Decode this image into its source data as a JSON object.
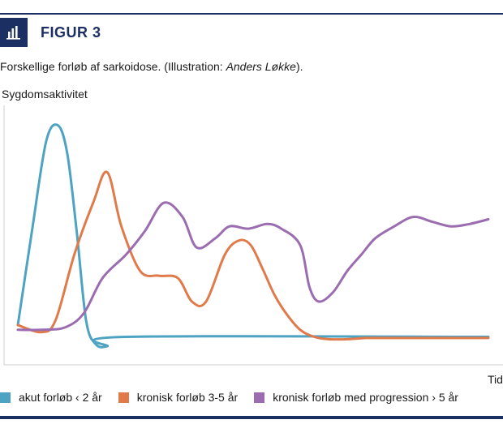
{
  "figure": {
    "label": "FIGUR 3",
    "icon": "bar-chart-icon",
    "caption_prefix": "Forskellige forløb af sarkoidose. (Illustration: ",
    "caption_author": "Anders Løkke",
    "caption_suffix": ")."
  },
  "colors": {
    "brand": "#1c2f63",
    "acute": "#4ea3c2",
    "chronic": "#e07a4a",
    "progressive": "#9b6db0"
  },
  "chart_data": {
    "type": "line",
    "title": "",
    "ylabel": "Sygdomsaktivitet",
    "xlabel": "Tid",
    "xlim": [
      0,
      100
    ],
    "ylim": [
      0,
      100
    ],
    "grid": false,
    "legend_position": "bottom",
    "series": [
      {
        "name": "akut forløb ‹ 2 år",
        "color": "#4ea3c2",
        "x": [
          0,
          3,
          6,
          8.5,
          10.5,
          12.5,
          14.5,
          16.5,
          19,
          23,
          100
        ],
        "y": [
          10,
          50,
          88,
          95,
          83,
          50,
          12,
          2,
          1,
          5,
          5
        ]
      },
      {
        "name": "kronisk forløb 3-5 år",
        "color": "#e07a4a",
        "x": [
          0,
          5,
          8,
          12,
          16,
          19,
          22,
          26,
          30,
          34,
          37,
          40,
          44,
          47,
          49.5,
          52,
          54.5,
          57,
          60,
          63,
          66,
          70,
          74,
          78,
          85,
          100
        ],
        "y": [
          10,
          7,
          12,
          40,
          62,
          75,
          52,
          33,
          31,
          30,
          20,
          20,
          40,
          46,
          44,
          34,
          23,
          15,
          8,
          5,
          4,
          4,
          4.5,
          4.5,
          4.5,
          4.5
        ]
      },
      {
        "name": "kronisk forløb med progression › 5 år",
        "color": "#9b6db0",
        "x": [
          0,
          5,
          10,
          14,
          18,
          23,
          27,
          31,
          35,
          38,
          42,
          45,
          49,
          53,
          56,
          60,
          62,
          64,
          67,
          70,
          73,
          76,
          80,
          84,
          88,
          92,
          96,
          100
        ],
        "y": [
          8,
          8,
          9,
          15,
          30,
          40,
          50,
          62,
          56,
          43,
          47,
          52,
          51,
          53,
          51,
          44,
          26,
          20,
          24,
          33,
          40,
          47,
          52,
          56,
          54,
          52,
          53,
          55
        ]
      }
    ]
  }
}
